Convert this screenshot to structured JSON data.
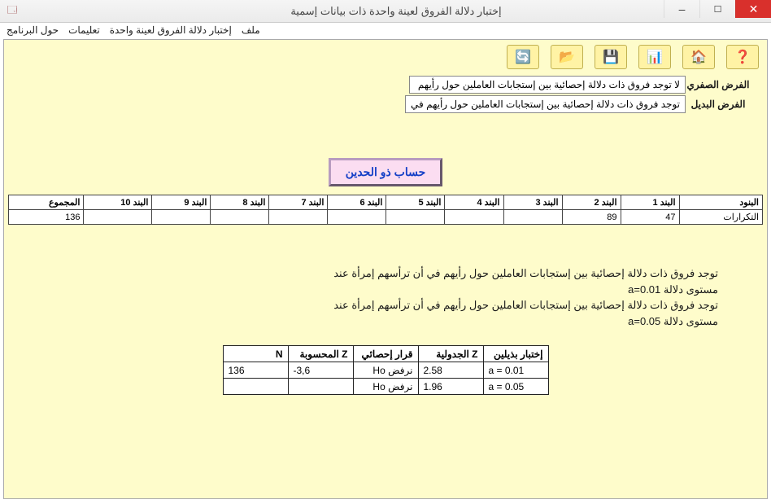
{
  "window": {
    "title": "إختبار دلالة الفروق لعينة واحدة ذات بيانات إسمية"
  },
  "menu": {
    "file": "ملف",
    "test": "إختبار دلالة الفروق لعينة واحدة",
    "instructions": "تعليمات",
    "about": "حول البرنامج"
  },
  "toolbar_icons": {
    "refresh": "🔄",
    "open": "📂",
    "save": "💾",
    "grid": "📊",
    "home": "🏠",
    "help": "❓"
  },
  "hypotheses": {
    "h0_label": "الفرض الصفري",
    "h0_text": "لا توجد فروق ذات دلالة إحصائية بين إستجابات العاملين حول رأيهم",
    "h1_label": "الفرض البديل",
    "h1_text": "توجد فروق ذات دلالة إحصائية بين إستجابات العاملين حول رأيهم في"
  },
  "calc_button": "حساب ذو الحدين",
  "freq_table": {
    "headers": [
      "البنود",
      "البند 1",
      "البند 2",
      "البند 3",
      "البند 4",
      "البند 5",
      "البند 6",
      "البند 7",
      "البند 8",
      "البند 9",
      "البند 10",
      "المجموع"
    ],
    "row_label": "التكرارات",
    "values": [
      "47",
      "89",
      "",
      "",
      "",
      "",
      "",
      "",
      "",
      "",
      "136"
    ]
  },
  "conclusions": {
    "line1": "توجد فروق ذات دلالة إحصائية بين إستجابات العاملين حول رأيهم في أن ترأسهم إمرأة عند",
    "line2": "مستوى دلالة a=0.01",
    "line3": "توجد فروق ذات دلالة إحصائية بين إستجابات العاملين حول رأيهم في أن ترأسهم إمرأة عند",
    "line4": "مستوى دلالة a=0.05"
  },
  "results_table": {
    "headers": [
      "إختبار بذيلين",
      "Z الجدولية",
      "قرار إحصائي",
      "Z المحسوبة",
      "N"
    ],
    "rows": [
      {
        "alpha": "a = 0.01",
        "zt": "2.58",
        "dec": "نرفض Ho",
        "zc": "-3,6",
        "n": "136"
      },
      {
        "alpha": "a = 0.05",
        "zt": "1.96",
        "dec": "نرفض Ho",
        "zc": "",
        "n": ""
      }
    ]
  }
}
